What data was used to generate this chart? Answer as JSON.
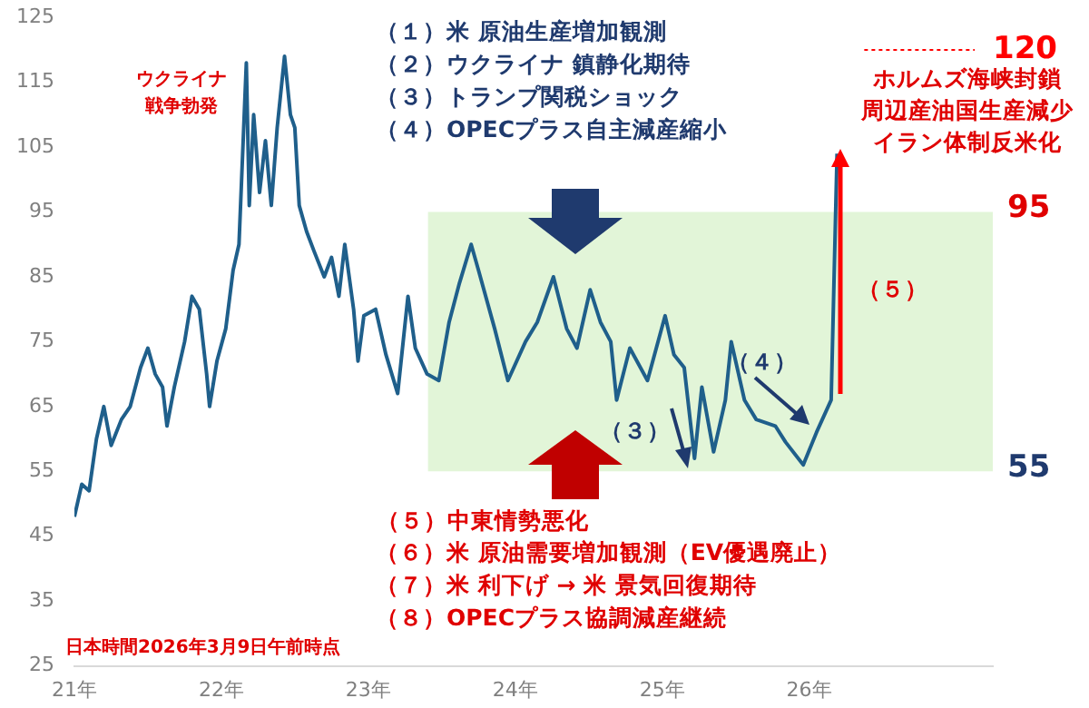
{
  "chart_data": {
    "type": "line",
    "x": [
      21.0,
      21.05,
      21.1,
      21.15,
      21.2,
      21.25,
      21.32,
      21.38,
      21.45,
      21.5,
      21.55,
      21.6,
      21.63,
      21.68,
      21.75,
      21.8,
      21.85,
      21.9,
      21.92,
      21.97,
      22.03,
      22.08,
      22.12,
      22.17,
      22.19,
      22.22,
      22.26,
      22.3,
      22.34,
      22.38,
      22.43,
      22.47,
      22.5,
      22.53,
      22.58,
      22.63,
      22.7,
      22.75,
      22.8,
      22.84,
      22.9,
      22.93,
      22.97,
      23.05,
      23.12,
      23.2,
      23.27,
      23.32,
      23.4,
      23.48,
      23.55,
      23.62,
      23.7,
      23.75,
      23.86,
      23.95,
      24.07,
      24.15,
      24.26,
      24.35,
      24.42,
      24.51,
      24.58,
      24.65,
      24.69,
      24.78,
      24.9,
      25.02,
      25.08,
      25.15,
      25.22,
      25.27,
      25.35,
      25.43,
      25.47,
      25.56,
      25.64,
      25.77,
      25.84,
      25.96,
      26.05,
      26.15,
      26.19
    ],
    "series": [
      {
        "color": "#1f5f8b",
        "values": [
          48,
          53,
          52,
          60,
          65,
          59,
          63,
          65,
          71,
          74,
          70,
          68,
          62,
          68,
          75,
          82,
          80,
          70,
          65,
          72,
          77,
          86,
          90,
          118,
          96,
          110,
          98,
          106,
          96,
          108,
          119,
          110,
          108,
          96,
          92,
          89,
          85,
          88,
          82,
          90,
          80,
          72,
          79,
          80,
          73,
          67,
          82,
          74,
          70,
          69,
          78,
          84,
          90,
          86,
          77,
          69,
          75,
          78,
          85,
          77,
          74,
          83,
          78,
          75,
          66,
          74,
          69,
          79,
          73,
          71,
          57,
          68,
          58,
          66,
          75,
          66,
          63,
          62,
          59.5,
          56,
          61,
          66,
          104
        ]
      }
    ],
    "xlim": [
      21,
      27.25
    ],
    "xticks": [
      {
        "value": 21,
        "label": "21年"
      },
      {
        "value": 22,
        "label": "22年"
      },
      {
        "value": 23,
        "label": "23年"
      },
      {
        "value": 24,
        "label": "24年"
      },
      {
        "value": 25,
        "label": "25年"
      },
      {
        "value": 26,
        "label": "26年"
      }
    ],
    "ylim": [
      25,
      125
    ],
    "yticks": [
      25,
      35,
      45,
      55,
      65,
      75,
      85,
      95,
      105,
      115,
      125
    ],
    "grid": false,
    "legend": false,
    "marker": "none",
    "line_style": "solid",
    "bands": [
      {
        "axis": "y",
        "from": 55,
        "to": 95,
        "color": "#e2f5d8"
      }
    ],
    "ref_lines": [
      {
        "axis": "y",
        "value": 120,
        "label": "120",
        "color": "#ff0000",
        "line_style": "dotted"
      }
    ],
    "annotations": [
      "ウクライナ戦争勃発",
      "（１）米 原油生産増加観測",
      "（２）ウクライナ 鎮静化期待",
      "（３）トランプ関税ショック",
      "（４）OPECプラス自主減産縮小",
      {
        "text": "（５）中東情勢悪化",
        "x": 24.4,
        "y": 55
      },
      "（６）米 原油需要増加観測（EV優遇廃止）",
      "（７）米 利下げ → 米 景気回復期待",
      "（８）OPECプラス協調減産継続",
      "（３）",
      "（４）",
      "（５）",
      "ホルムズ海峡封鎖周辺産油国生産減少イラン体制反米化",
      "日本時間2026年3月9日午前時点",
      "95",
      "55"
    ]
  }
}
